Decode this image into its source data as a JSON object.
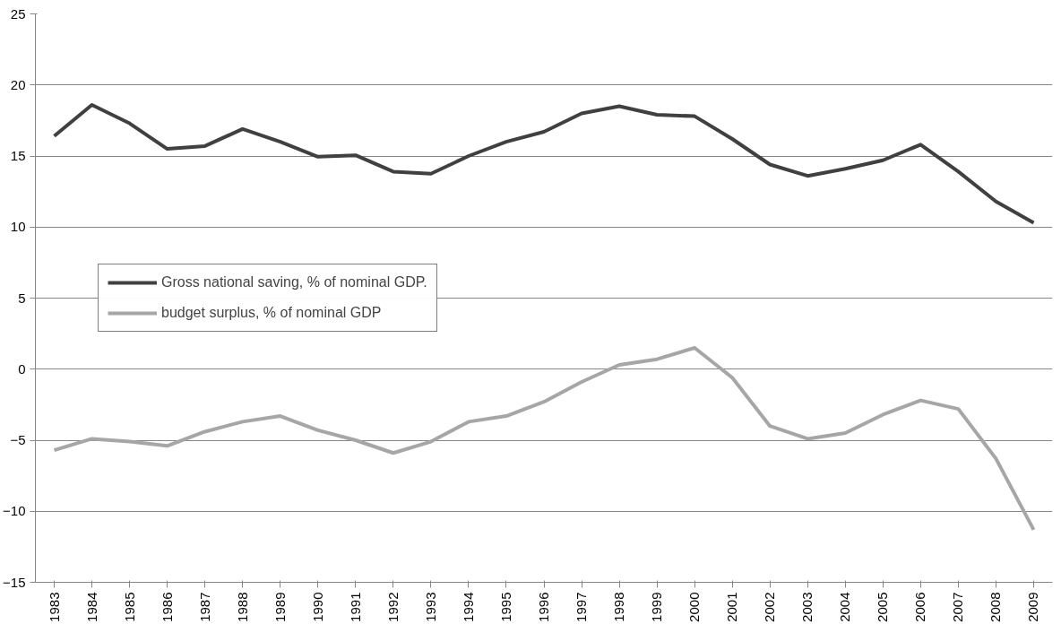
{
  "chart_data": {
    "type": "line",
    "categories": [
      "1983",
      "1984",
      "1985",
      "1986",
      "1987",
      "1988",
      "1989",
      "1990",
      "1991",
      "1992",
      "1993",
      "1994",
      "1995",
      "1996",
      "1997",
      "1998",
      "1999",
      "2000",
      "2001",
      "2002",
      "2003",
      "2004",
      "2005",
      "2006",
      "2007",
      "2008",
      "2009"
    ],
    "series": [
      {
        "name": "Gross national saving, % of nominal GDP.",
        "color": "#404040",
        "values": [
          16.4,
          18.6,
          17.3,
          15.5,
          15.7,
          16.9,
          16.0,
          14.95,
          15.05,
          13.9,
          13.75,
          15.0,
          16.0,
          16.7,
          18.0,
          18.5,
          17.9,
          17.8,
          16.2,
          14.4,
          13.6,
          14.1,
          14.7,
          15.8,
          13.9,
          11.8,
          10.3
        ]
      },
      {
        "name": "budget surplus, % of nominal GDP",
        "color": "#a6a6a6",
        "values": [
          -5.7,
          -4.9,
          -5.1,
          -5.4,
          -4.4,
          -3.7,
          -3.3,
          -4.3,
          -5.0,
          -5.9,
          -5.1,
          -3.7,
          -3.3,
          -2.3,
          -0.9,
          0.3,
          0.7,
          1.5,
          -0.6,
          -4.0,
          -4.9,
          -4.5,
          -3.2,
          -2.2,
          -2.8,
          -6.3,
          -11.3
        ]
      }
    ],
    "ylim": [
      -15,
      25
    ],
    "yticks": [
      -15,
      -10,
      -5,
      0,
      5,
      10,
      15,
      20,
      25
    ],
    "grid": "y",
    "legend": "left",
    "marker": "none",
    "line_style": "solid"
  }
}
